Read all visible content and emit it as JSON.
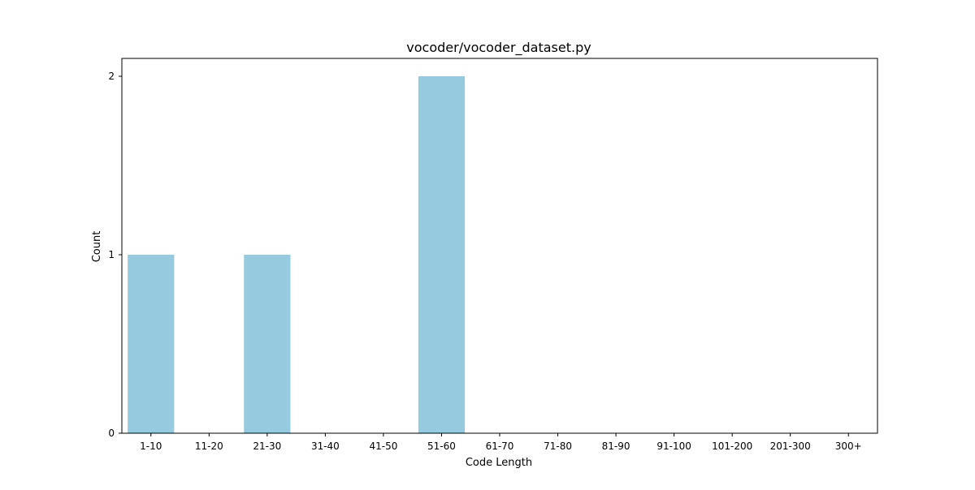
{
  "chart_data": {
    "type": "bar",
    "title": "vocoder/vocoder_dataset.py",
    "xlabel": "Code Length",
    "ylabel": "Count",
    "categories": [
      "1-10",
      "11-20",
      "21-30",
      "31-40",
      "41-50",
      "51-60",
      "61-70",
      "71-80",
      "81-90",
      "91-100",
      "101-200",
      "201-300",
      "300+"
    ],
    "values": [
      1,
      0,
      1,
      0,
      0,
      2,
      0,
      0,
      0,
      0,
      0,
      0,
      0
    ],
    "ylim": [
      0,
      2.1
    ],
    "yticks": [
      0,
      1,
      2
    ],
    "bar_color": "#96cadf",
    "grid": false,
    "legend": false
  }
}
